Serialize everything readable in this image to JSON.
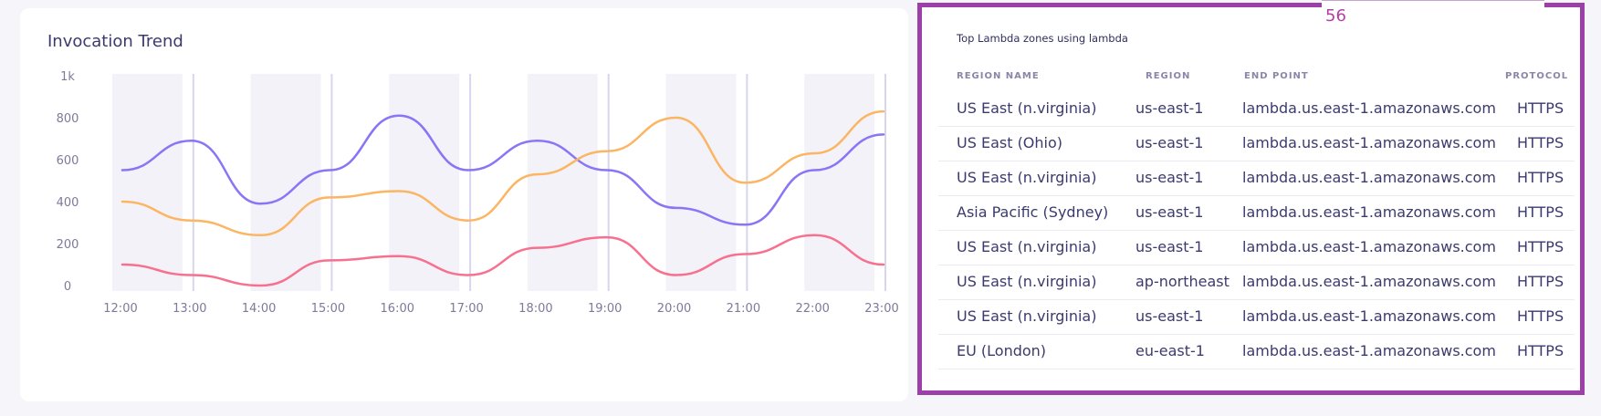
{
  "trend": {
    "title": "Invocation Trend"
  },
  "chart_data": {
    "type": "line",
    "title": "Invocation Trend",
    "xlabel": "",
    "ylabel": "",
    "x": [
      "12:00",
      "13:00",
      "14:00",
      "15:00",
      "16:00",
      "17:00",
      "18:00",
      "19:00",
      "20:00",
      "21:00",
      "22:00",
      "23:00"
    ],
    "y_ticks": [
      "0",
      "200",
      "400",
      "600",
      "800",
      "1k"
    ],
    "ylim": [
      0,
      1000
    ],
    "grid": false,
    "series": [
      {
        "color": "#8b74f6",
        "values": [
          550,
          690,
          390,
          550,
          810,
          550,
          690,
          550,
          370,
          290,
          550,
          720
        ]
      },
      {
        "color": "#fbb563",
        "values": [
          400,
          310,
          240,
          420,
          450,
          310,
          530,
          640,
          800,
          490,
          630,
          830
        ]
      },
      {
        "color": "#f7718f",
        "values": [
          100,
          50,
          0,
          120,
          140,
          50,
          180,
          230,
          50,
          150,
          240,
          100
        ]
      }
    ]
  },
  "zones": {
    "badge": "56",
    "title": "Top Lambda zones using lambda",
    "headers": {
      "name": "REGION NAME",
      "region": "REGION",
      "endpoint": "END POINT",
      "protocol": "PROTOCOL"
    },
    "rows": [
      {
        "name": "US East (n.virginia)",
        "region": "us-east-1",
        "endpoint": "lambda.us.east-1.amazonaws.com",
        "protocol": "HTTPS"
      },
      {
        "name": "US East (Ohio)",
        "region": "us-east-1",
        "endpoint": "lambda.us.east-1.amazonaws.com",
        "protocol": "HTTPS"
      },
      {
        "name": "US East (n.virginia)",
        "region": "us-east-1",
        "endpoint": "lambda.us.east-1.amazonaws.com",
        "protocol": "HTTPS"
      },
      {
        "name": "Asia Pacific (Sydney)",
        "region": "us-east-1",
        "endpoint": "lambda.us.east-1.amazonaws.com",
        "protocol": "HTTPS"
      },
      {
        "name": "US East (n.virginia)",
        "region": "us-east-1",
        "endpoint": "lambda.us.east-1.amazonaws.com",
        "protocol": "HTTPS"
      },
      {
        "name": "US East (n.virginia)",
        "region": "ap-northeast",
        "endpoint": "lambda.us.east-1.amazonaws.com",
        "protocol": "HTTPS"
      },
      {
        "name": "US East (n.virginia)",
        "region": "us-east-1",
        "endpoint": "lambda.us.east-1.amazonaws.com",
        "protocol": "HTTPS"
      },
      {
        "name": "EU (London)",
        "region": "eu-east-1",
        "endpoint": "lambda.us.east-1.amazonaws.com",
        "protocol": "HTTPS"
      }
    ]
  }
}
